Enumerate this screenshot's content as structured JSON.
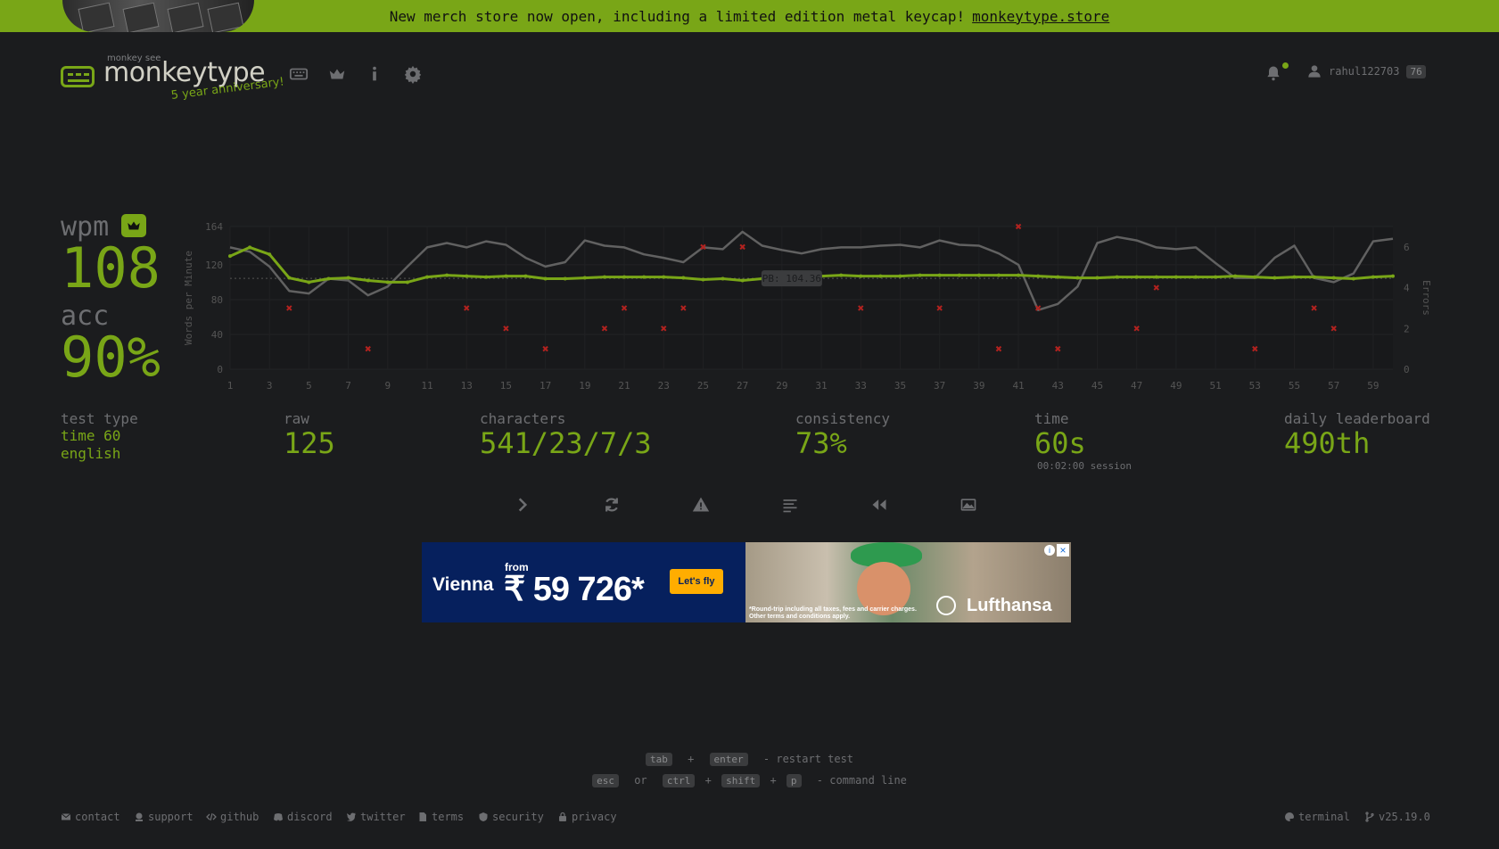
{
  "banner": {
    "text": "New merch store now open, including a limited edition metal keycap!",
    "link": "monkeytype.store"
  },
  "header": {
    "logo_top": "monkey see",
    "logo_text": "monkeytype",
    "anniversary": "5 year anniversary!",
    "nav_icons": [
      "keyboard-icon",
      "crown-icon",
      "info-icon",
      "gear-icon"
    ],
    "username": "rahul122703",
    "level": "76"
  },
  "result": {
    "wpm_label": "wpm",
    "wpm": "108",
    "acc_label": "acc",
    "acc": "90%",
    "test_type_label": "test type",
    "test_type_mode": "time 60",
    "test_type_lang": "english",
    "raw_label": "raw",
    "raw": "125",
    "characters_label": "characters",
    "characters": "541/23/7/3",
    "consistency_label": "consistency",
    "consistency": "73%",
    "time_label": "time",
    "time": "60s",
    "session": "00:02:00 session",
    "leaderboard_label": "daily leaderboard",
    "leaderboard": "490th"
  },
  "chart_data": {
    "type": "line",
    "ylabel": "Words per Minute",
    "y2label": "Errors",
    "ylim": [
      0,
      164
    ],
    "y2lim": [
      0,
      7
    ],
    "yticks": [
      0,
      40,
      80,
      120,
      164
    ],
    "y2ticks": [
      0,
      2,
      4,
      6
    ],
    "xticks": [
      1,
      3,
      5,
      7,
      9,
      11,
      13,
      15,
      17,
      19,
      21,
      23,
      25,
      27,
      29,
      31,
      33,
      35,
      37,
      39,
      41,
      43,
      45,
      47,
      49,
      51,
      53,
      55,
      57,
      59
    ],
    "pb_label": "PB: 104.36",
    "pb_value": 104.36,
    "colors": {
      "wpm": "#79a617",
      "raw": "#616161",
      "errors": "#b3221f"
    },
    "series": [
      {
        "name": "wpm",
        "x": [
          1,
          2,
          3,
          4,
          5,
          6,
          7,
          8,
          9,
          10,
          11,
          12,
          13,
          14,
          15,
          16,
          17,
          18,
          19,
          20,
          21,
          22,
          23,
          24,
          25,
          26,
          27,
          28,
          29,
          30,
          31,
          32,
          33,
          34,
          35,
          36,
          37,
          38,
          39,
          40,
          41,
          42,
          43,
          44,
          45,
          46,
          47,
          48,
          49,
          50,
          51,
          52,
          53,
          54,
          55,
          56,
          57,
          58,
          59,
          60
        ],
        "values": [
          130,
          140,
          132,
          105,
          100,
          104,
          105,
          102,
          100,
          100,
          106,
          108,
          107,
          106,
          107,
          107,
          104,
          104,
          105,
          106,
          106,
          106,
          106,
          105,
          103,
          104,
          102,
          104,
          105,
          106,
          107,
          108,
          107,
          107,
          107,
          108,
          108,
          108,
          108,
          108,
          108,
          107,
          106,
          105,
          105,
          106,
          106,
          106,
          106,
          106,
          106,
          107,
          106,
          105,
          106,
          106,
          105,
          104,
          106,
          107
        ]
      },
      {
        "name": "raw",
        "x": [
          1,
          2,
          3,
          4,
          5,
          6,
          7,
          8,
          9,
          10,
          11,
          12,
          13,
          14,
          15,
          16,
          17,
          18,
          19,
          20,
          21,
          22,
          23,
          24,
          25,
          26,
          27,
          28,
          29,
          30,
          31,
          32,
          33,
          34,
          35,
          36,
          37,
          38,
          39,
          40,
          41,
          42,
          43,
          44,
          45,
          46,
          47,
          48,
          49,
          50,
          51,
          52,
          53,
          54,
          55,
          56,
          57,
          58,
          59,
          60
        ],
        "values": [
          140,
          135,
          118,
          90,
          87,
          104,
          102,
          85,
          95,
          118,
          140,
          145,
          140,
          147,
          143,
          128,
          118,
          123,
          148,
          142,
          140,
          132,
          128,
          123,
          140,
          138,
          158,
          142,
          137,
          133,
          138,
          140,
          140,
          142,
          143,
          140,
          148,
          143,
          142,
          133,
          120,
          68,
          75,
          95,
          145,
          152,
          148,
          140,
          138,
          140,
          122,
          105,
          105,
          128,
          142,
          105,
          100,
          110,
          147,
          150
        ]
      },
      {
        "name": "errors",
        "type": "scatter",
        "x": [
          4,
          8,
          13,
          15,
          17,
          20,
          21,
          23,
          24,
          25,
          27,
          33,
          37,
          40,
          41,
          42,
          43,
          47,
          48,
          53,
          56,
          57
        ],
        "values": [
          3,
          1,
          3,
          2,
          1,
          2,
          3,
          2,
          3,
          6,
          6,
          3,
          3,
          1,
          7,
          3,
          1,
          2,
          4,
          1,
          3,
          2
        ]
      }
    ]
  },
  "actions": [
    "next-test",
    "restart",
    "report",
    "word-history",
    "replay",
    "screenshot"
  ],
  "hints": {
    "line1": {
      "k1": "tab",
      "plus": "+",
      "k2": "enter",
      "text": "- restart test"
    },
    "line2": {
      "k1": "esc",
      "or": "or",
      "k2": "ctrl",
      "plus1": "+",
      "k3": "shift",
      "plus2": "+",
      "k4": "p",
      "text": "- command line"
    }
  },
  "ad": {
    "city": "Vienna",
    "from": "from",
    "price": "₹ 59 726*",
    "button": "Let's fly",
    "fine": "*Round-trip including all taxes, fees and carrier charges. Other terms and conditions apply.",
    "brand": "Lufthansa"
  },
  "footer": {
    "links": [
      "contact",
      "support",
      "github",
      "discord",
      "twitter",
      "terms",
      "security",
      "privacy"
    ],
    "theme": "terminal",
    "version": "v25.19.0"
  }
}
